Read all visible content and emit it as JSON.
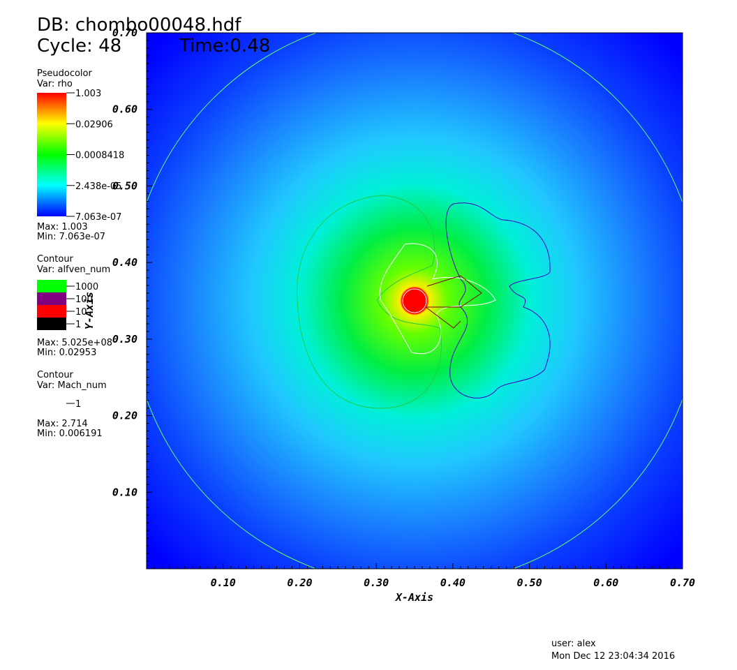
{
  "header": {
    "db": "DB: chombo00048.hdf",
    "cycle": "Cycle: 48",
    "time": "Time:0.48"
  },
  "legend": {
    "pseudocolor": {
      "title": "Pseudocolor",
      "var": "Var: rho",
      "labels": [
        "1.003",
        "0.02906",
        "0.0008418",
        "2.438e-05",
        "7.063e-07"
      ],
      "max": "Max:  1.003",
      "min": "Min:  7.063e-07"
    },
    "contour_alfven": {
      "title": "Contour",
      "var": "Var: alfven_num",
      "levels": [
        "1000",
        "100",
        "10",
        "1"
      ],
      "max": "Max:  5.025e+08",
      "min": "Min:  0.02953"
    },
    "contour_mach": {
      "title": "Contour",
      "var": "Var: Mach_num",
      "levels": [
        "1"
      ],
      "max": "Max:  2.714",
      "min": "Min:  0.006191"
    }
  },
  "axes": {
    "x_title": "X-Axis",
    "y_title": "Y-Axis",
    "x_ticks": [
      "0.10",
      "0.20",
      "0.30",
      "0.40",
      "0.50",
      "0.60",
      "0.70"
    ],
    "y_ticks": [
      "0.70",
      "0.60",
      "0.50",
      "0.40",
      "0.30",
      "0.20",
      "0.10"
    ]
  },
  "footer": {
    "user": "user: alex",
    "date": "Mon Dec 12 23:04:34 2016"
  }
}
